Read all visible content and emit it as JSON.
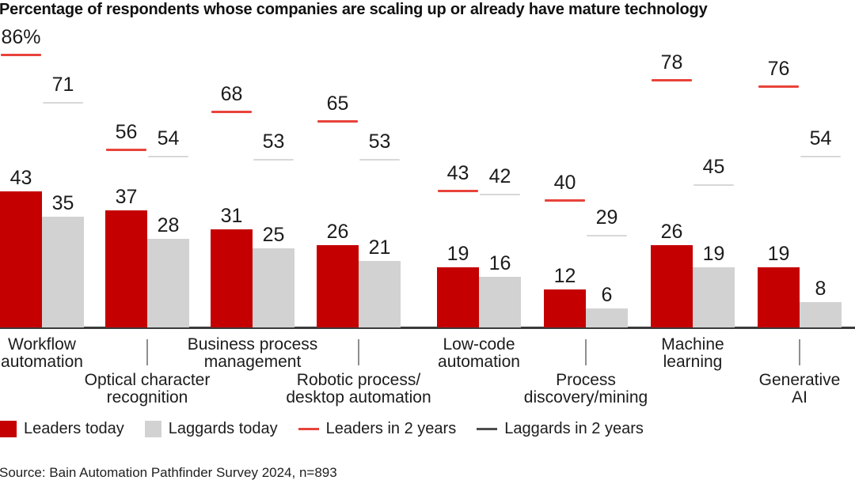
{
  "title": "Percentage of respondents whose companies are scaling up or already have mature technology",
  "source": "Source: Bain Automation Pathfinder Survey 2024, n=893",
  "colors": {
    "leaders_today": "#c40000",
    "laggards_today": "#d2d2d2",
    "leaders_2y": "#e8433a",
    "laggards_2y": "#d8d8d8",
    "laggards_2y_legend": "#4d4d4d",
    "axis": "#3a3a3a"
  },
  "legend": {
    "items": [
      {
        "label": "Leaders today",
        "swatch": "square",
        "color_key": "leaders_today"
      },
      {
        "label": "Laggards today",
        "swatch": "square",
        "color_key": "laggards_today"
      },
      {
        "label": "Leaders in 2 years",
        "swatch": "dash",
        "color_key": "leaders_2y"
      },
      {
        "label": "Laggards in 2 years",
        "swatch": "dash",
        "color_key": "laggards_2y_legend"
      }
    ]
  },
  "chart_data": {
    "type": "bar",
    "title": "Percentage of respondents whose companies are scaling up or already have mature technology",
    "xlabel": "",
    "ylabel": "",
    "ylim": [
      0,
      100
    ],
    "grid": false,
    "legend_position": "bottom",
    "categories": [
      "Workflow automation",
      "Optical character recognition",
      "Business process management",
      "Robotic process/desktop automation",
      "Low-code automation",
      "Process discovery/mining",
      "Machine learning",
      "Generative AI"
    ],
    "series": [
      {
        "name": "Leaders today",
        "style": "bar",
        "values": [
          43,
          37,
          31,
          26,
          19,
          12,
          26,
          19
        ]
      },
      {
        "name": "Laggards today",
        "style": "bar",
        "values": [
          35,
          28,
          25,
          21,
          16,
          6,
          19,
          8
        ]
      },
      {
        "name": "Leaders in 2 years",
        "style": "dash-marker",
        "values": [
          86,
          56,
          68,
          65,
          43,
          40,
          78,
          76
        ]
      },
      {
        "name": "Laggards in 2 years",
        "style": "dash-marker",
        "values": [
          71,
          54,
          53,
          53,
          42,
          29,
          45,
          54
        ]
      }
    ],
    "groups": [
      {
        "category": "Workflow\nautomation",
        "leaders_today": {
          "v": 43,
          "label": "43"
        },
        "laggards_today": {
          "v": 35,
          "label": "35"
        },
        "leaders_2y": {
          "v": 86,
          "label": "86%"
        },
        "laggards_2y": {
          "v": 71,
          "label": "71"
        }
      },
      {
        "category": "Optical character\nrecognition",
        "leaders_today": {
          "v": 37,
          "label": "37"
        },
        "laggards_today": {
          "v": 28,
          "label": "28"
        },
        "leaders_2y": {
          "v": 56,
          "label": "56"
        },
        "laggards_2y": {
          "v": 54,
          "label": "54"
        }
      },
      {
        "category": "Business process\nmanagement",
        "leaders_today": {
          "v": 31,
          "label": "31"
        },
        "laggards_today": {
          "v": 25,
          "label": "25"
        },
        "leaders_2y": {
          "v": 68,
          "label": "68"
        },
        "laggards_2y": {
          "v": 53,
          "label": "53"
        }
      },
      {
        "category": "Robotic process/\ndesktop automation",
        "leaders_today": {
          "v": 26,
          "label": "26"
        },
        "laggards_today": {
          "v": 21,
          "label": "21"
        },
        "leaders_2y": {
          "v": 65,
          "label": "65"
        },
        "laggards_2y": {
          "v": 53,
          "label": "53"
        }
      },
      {
        "category": "Low-code\nautomation",
        "leaders_today": {
          "v": 19,
          "label": "19"
        },
        "laggards_today": {
          "v": 16,
          "label": "16"
        },
        "leaders_2y": {
          "v": 43,
          "label": "43"
        },
        "laggards_2y": {
          "v": 42,
          "label": "42"
        }
      },
      {
        "category": "Process\ndiscovery/mining",
        "leaders_today": {
          "v": 12,
          "label": "12"
        },
        "laggards_today": {
          "v": 6,
          "label": "6"
        },
        "leaders_2y": {
          "v": 40,
          "label": "40"
        },
        "laggards_2y": {
          "v": 29,
          "label": "29"
        }
      },
      {
        "category": "Machine\nlearning",
        "leaders_today": {
          "v": 26,
          "label": "26"
        },
        "laggards_today": {
          "v": 19,
          "label": "19"
        },
        "leaders_2y": {
          "v": 78,
          "label": "78"
        },
        "laggards_2y": {
          "v": 45,
          "label": "45"
        }
      },
      {
        "category": "Generative\nAI",
        "leaders_today": {
          "v": 19,
          "label": "19"
        },
        "laggards_today": {
          "v": 8,
          "label": "8"
        },
        "leaders_2y": {
          "v": 76,
          "label": "76"
        },
        "laggards_2y": {
          "v": 54,
          "label": "54"
        }
      }
    ]
  }
}
